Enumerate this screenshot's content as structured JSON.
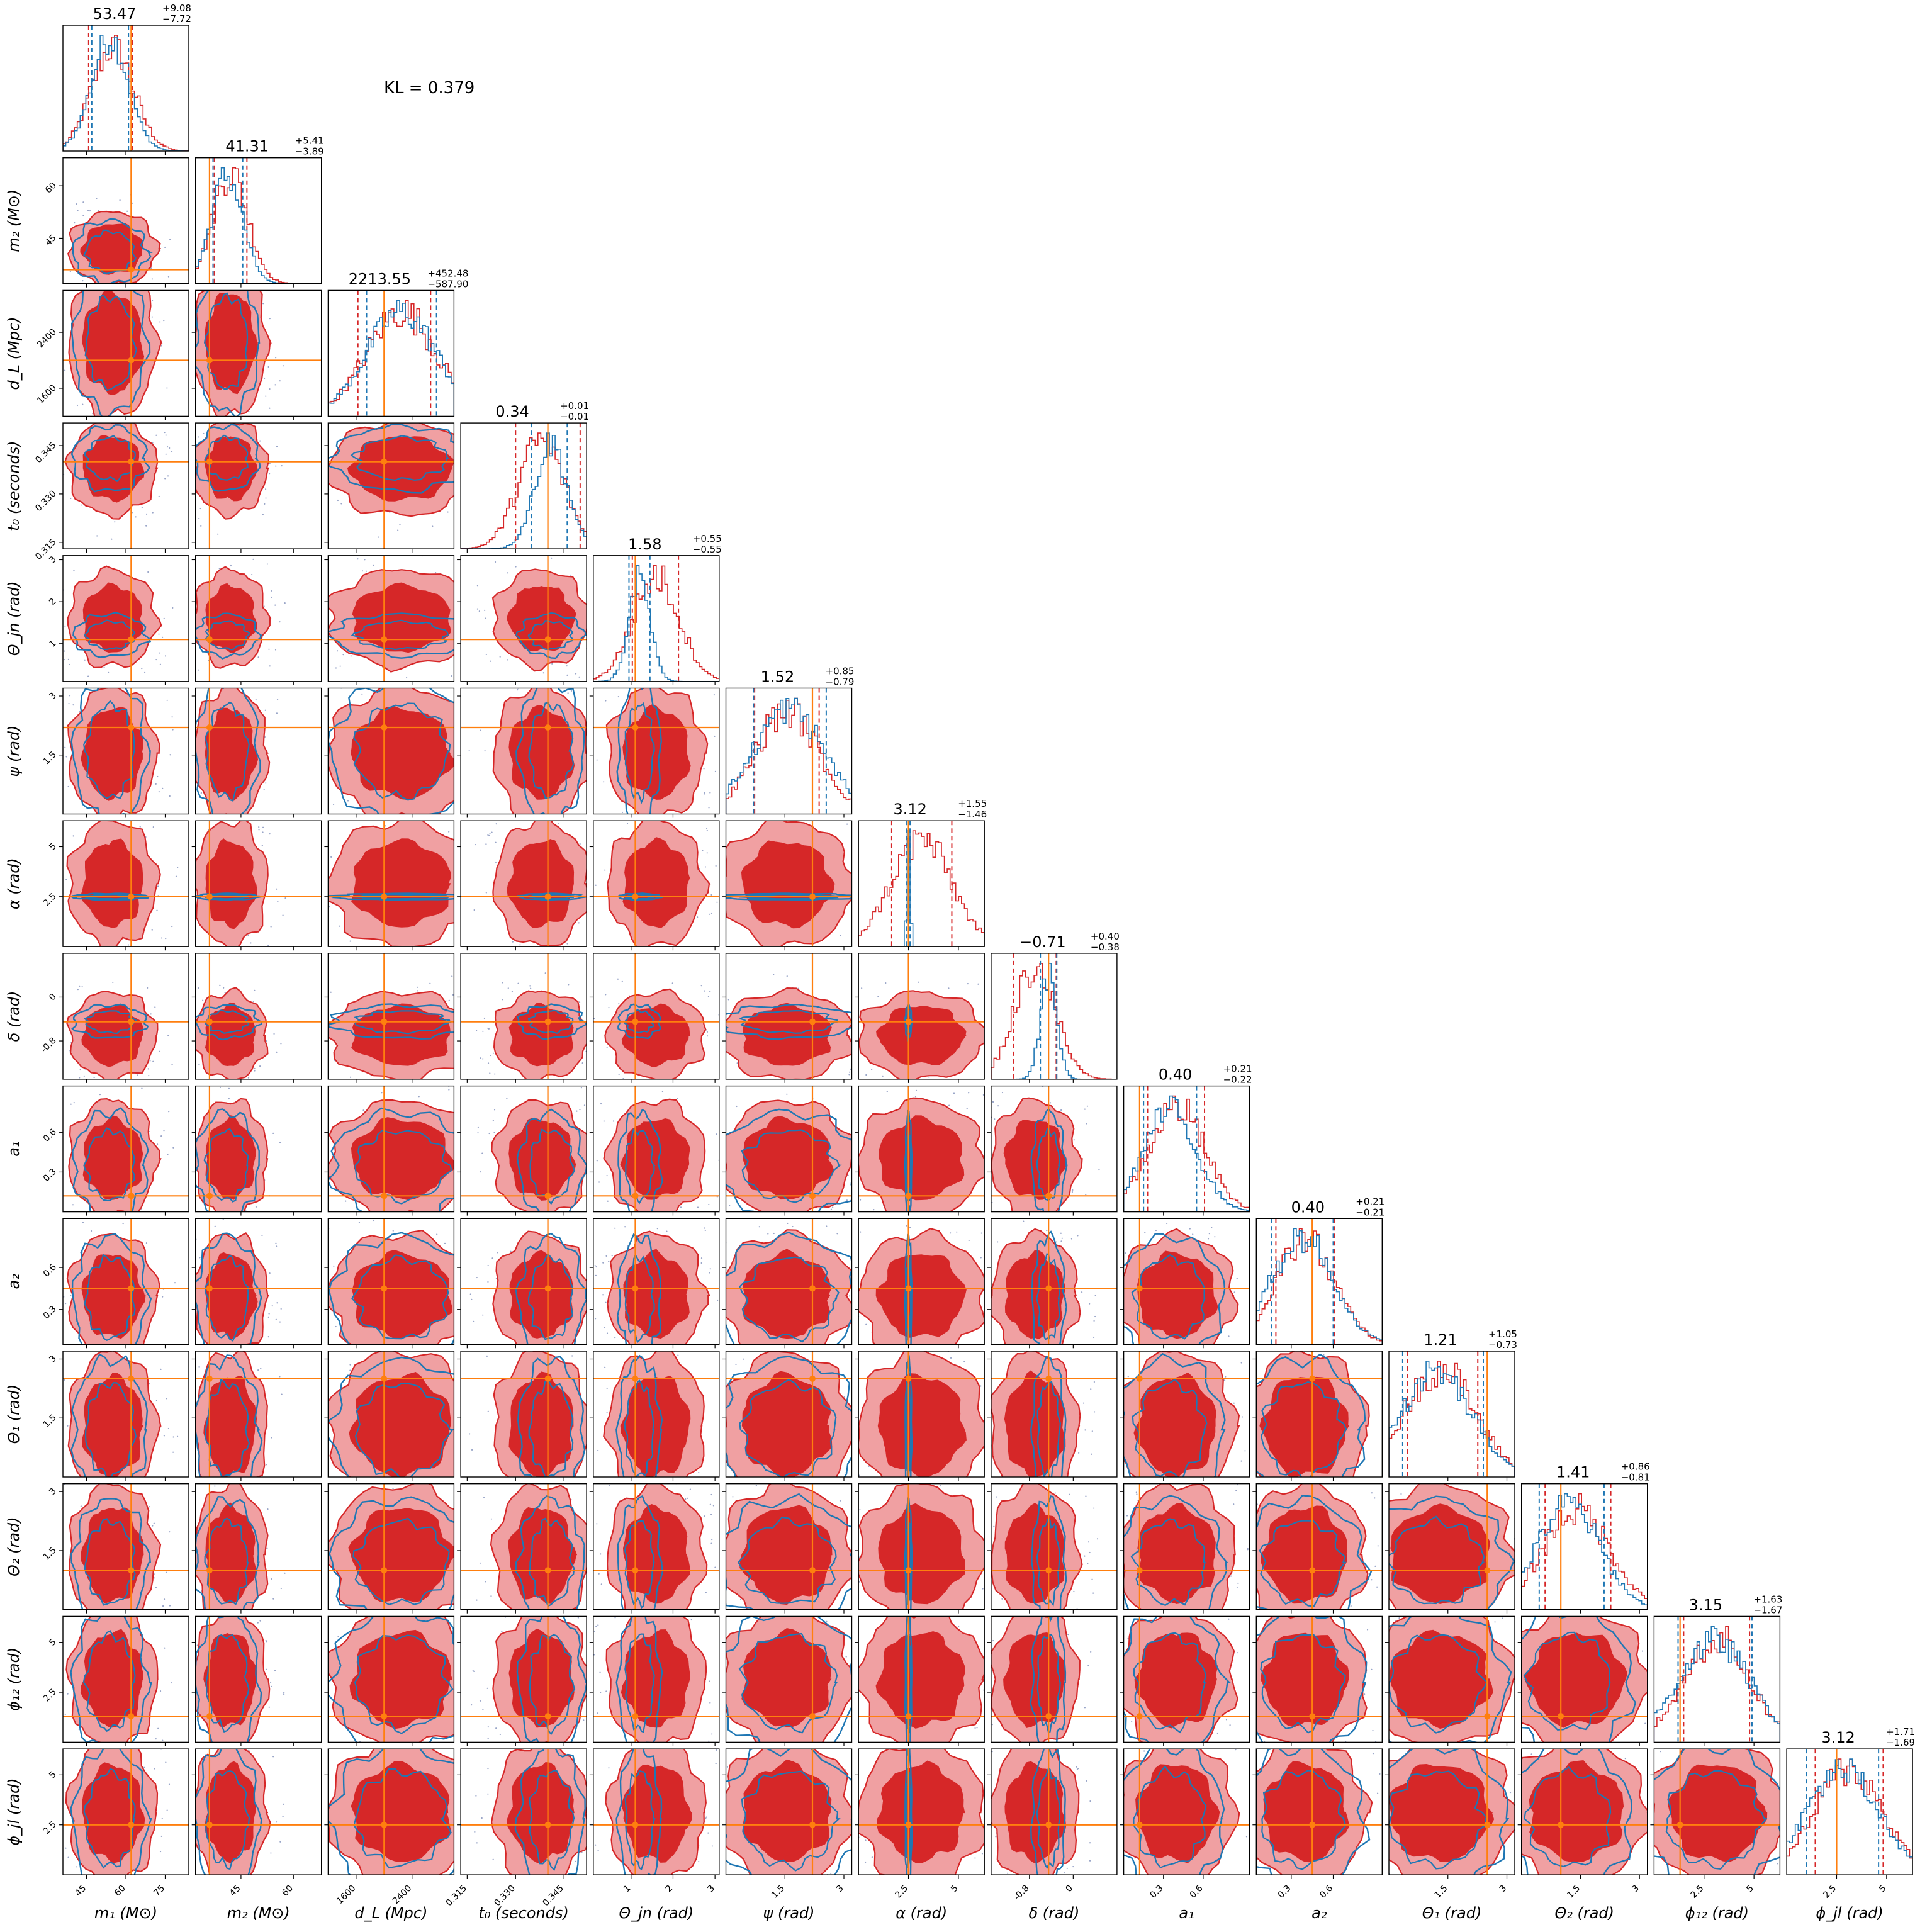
{
  "annotation": "KL = 0.379",
  "chart_data": {
    "type": "corner",
    "colors": {
      "posterior_a": "#d62728",
      "posterior_b": "#1f77b4",
      "truth": "#ff7f0e",
      "fill_dark": "#d62728",
      "fill_light": "#f0a0a2"
    },
    "params": [
      {
        "id": "m1",
        "label": "m₁ (M⊙)",
        "range": [
          36,
          84
        ],
        "ticks": [
          45,
          60,
          75
        ],
        "title": "53.47",
        "plus": "+9.08",
        "minus": "−7.72",
        "truth": 62
      },
      {
        "id": "m2",
        "label": "m₂ (M⊙)",
        "range": [
          32,
          68
        ],
        "ticks": [
          45,
          60
        ],
        "title": "41.31",
        "plus": "+5.41",
        "minus": "−3.89",
        "truth": 36
      },
      {
        "id": "dL",
        "label": "d_L (Mpc)",
        "range": [
          1200,
          3000
        ],
        "ticks": [
          1600,
          2400
        ],
        "title": "2213.55",
        "plus": "+452.48",
        "minus": "−587.90",
        "truth": 2000
      },
      {
        "id": "t0",
        "label": "t₀ (seconds)",
        "range": [
          0.313,
          0.352
        ],
        "ticks": [
          0.315,
          0.33,
          0.345
        ],
        "ticklabels": [
          "0.315",
          "0.330",
          "0.345"
        ],
        "title": "0.34",
        "plus": "+0.01",
        "minus": "−0.01",
        "truth": 0.34
      },
      {
        "id": "thetajn",
        "label": "Θ_jn (rad)",
        "range": [
          0.1,
          3.1
        ],
        "ticks": [
          1,
          2,
          3
        ],
        "title": "1.58",
        "plus": "+0.55",
        "minus": "−0.55",
        "truth": 1.1
      },
      {
        "id": "psi",
        "label": "ψ (rad)",
        "range": [
          0,
          3.2
        ],
        "ticks": [
          1.5,
          3.0
        ],
        "title": "1.52",
        "plus": "+0.85",
        "minus": "−0.79",
        "truth": 2.2
      },
      {
        "id": "alpha",
        "label": "α (rad)",
        "range": [
          0,
          6.3
        ],
        "ticks": [
          2.5,
          5.0
        ],
        "title": "3.12",
        "plus": "+1.55",
        "minus": "−1.46",
        "truth": 2.5
      },
      {
        "id": "delta",
        "label": "δ (rad)",
        "range": [
          -1.5,
          0.8
        ],
        "ticks": [
          -0.8,
          0.0
        ],
        "title": "−0.71",
        "plus": "+0.40",
        "minus": "−0.38",
        "truth": -0.45
      },
      {
        "id": "a1",
        "label": "a₁",
        "range": [
          0,
          0.95
        ],
        "ticks": [
          0.3,
          0.6
        ],
        "title": "0.40",
        "plus": "+0.21",
        "minus": "−0.22",
        "truth": 0.12
      },
      {
        "id": "a2",
        "label": "a₂",
        "range": [
          0.05,
          0.95
        ],
        "ticks": [
          0.3,
          0.6
        ],
        "title": "0.40",
        "plus": "+0.21",
        "minus": "−0.21",
        "truth": 0.45
      },
      {
        "id": "theta1",
        "label": "Θ₁ (rad)",
        "range": [
          0,
          3.2
        ],
        "ticks": [
          1.5,
          3.0
        ],
        "title": "1.21",
        "plus": "+1.05",
        "minus": "−0.73",
        "truth": 2.5
      },
      {
        "id": "theta2",
        "label": "Θ₂ (rad)",
        "range": [
          0,
          3.2
        ],
        "ticks": [
          1.5,
          3.0
        ],
        "title": "1.41",
        "plus": "+0.86",
        "minus": "−0.81",
        "truth": 1.0
      },
      {
        "id": "phi12",
        "label": "ϕ₁₂ (rad)",
        "range": [
          0,
          6.3
        ],
        "ticks": [
          2.5,
          5.0
        ],
        "title": "3.15",
        "plus": "+1.63",
        "minus": "−1.67",
        "truth": 1.3
      },
      {
        "id": "phijl",
        "label": "ϕ_jl (rad)",
        "range": [
          0,
          6.3
        ],
        "ticks": [
          2.5,
          5.0
        ],
        "title": "3.12",
        "plus": "+1.71",
        "minus": "−1.69",
        "truth": 2.5
      }
    ],
    "posteriors": {
      "a": [
        {
          "mean": 55,
          "sd": 8
        },
        {
          "mean": 42,
          "sd": 5
        },
        {
          "mean": 2250,
          "sd": 500
        },
        {
          "mean": 0.338,
          "sd": 0.007
        },
        {
          "mean": 1.6,
          "sd": 0.55
        },
        {
          "mean": 1.55,
          "sd": 0.8
        },
        {
          "mean": 3.15,
          "sd": 1.5
        },
        {
          "mean": -0.7,
          "sd": 0.38
        },
        {
          "mean": 0.4,
          "sd": 0.21
        },
        {
          "mean": 0.4,
          "sd": 0.21
        },
        {
          "mean": 1.3,
          "sd": 0.9
        },
        {
          "mean": 1.4,
          "sd": 0.85
        },
        {
          "mean": 3.15,
          "sd": 1.65
        },
        {
          "mean": 3.12,
          "sd": 1.7
        }
      ],
      "b": [
        {
          "mean": 54,
          "sd": 7
        },
        {
          "mean": 41,
          "sd": 4.5
        },
        {
          "mean": 2250,
          "sd": 500
        },
        {
          "mean": 0.341,
          "sd": 0.005
        },
        {
          "mean": 1.2,
          "sd": 0.25
        },
        {
          "mean": 1.6,
          "sd": 0.9
        },
        {
          "mean": 2.5,
          "sd": 0.08
        },
        {
          "mean": -0.45,
          "sd": 0.15
        },
        {
          "mean": 0.35,
          "sd": 0.2
        },
        {
          "mean": 0.38,
          "sd": 0.22
        },
        {
          "mean": 1.2,
          "sd": 0.9
        },
        {
          "mean": 1.2,
          "sd": 0.8
        },
        {
          "mean": 3.0,
          "sd": 1.8
        },
        {
          "mean": 2.8,
          "sd": 1.8
        }
      ]
    },
    "quantiles_a": [
      [
        45.8,
        62.6
      ],
      [
        37.4,
        46.7
      ],
      [
        1626,
        2666
      ],
      [
        0.33,
        0.35
      ],
      [
        1.03,
        2.13
      ],
      [
        0.73,
        2.37
      ],
      [
        1.66,
        4.67
      ],
      [
        -1.09,
        -0.31
      ],
      [
        0.18,
        0.61
      ],
      [
        0.19,
        0.61
      ],
      [
        0.48,
        2.26
      ],
      [
        0.6,
        2.27
      ],
      [
        1.48,
        4.78
      ],
      [
        1.43,
        4.83
      ]
    ],
    "quantiles_b": [
      [
        47,
        61
      ],
      [
        37,
        45.5
      ],
      [
        1750,
        2750
      ],
      [
        0.335,
        0.346
      ],
      [
        0.95,
        1.45
      ],
      [
        0.7,
        2.55
      ],
      [
        2.42,
        2.58
      ],
      [
        -0.6,
        -0.3
      ],
      [
        0.15,
        0.55
      ],
      [
        0.16,
        0.6
      ],
      [
        0.35,
        2.4
      ],
      [
        0.45,
        2.1
      ],
      [
        1.2,
        4.9
      ],
      [
        1.0,
        4.6
      ]
    ]
  }
}
